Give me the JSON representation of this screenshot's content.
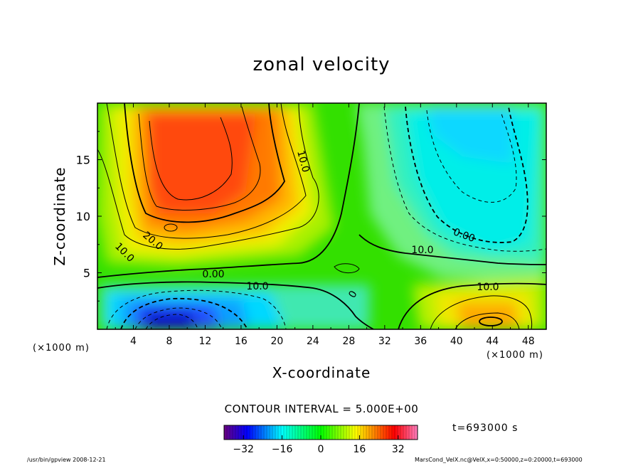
{
  "chart_data": {
    "type": "contour",
    "title": "zonal velocity",
    "xlabel": "X-coordinate",
    "ylabel": "Z-coordinate",
    "xunit": "(×1000 m)",
    "zunit": "(×1000 m)",
    "xlim": [
      0,
      50
    ],
    "ylim": [
      0,
      20
    ],
    "xticks": [
      "4",
      "8",
      "12",
      "16",
      "20",
      "24",
      "28",
      "32",
      "36",
      "40",
      "44",
      "48"
    ],
    "yticks": [
      "5",
      "10",
      "15"
    ],
    "contour_interval_text": "CONTOUR INTERVAL = 5.000E+00",
    "contour_labels": [
      "10.0",
      "20.0",
      "10.0",
      "0.00",
      "10.0",
      "0",
      "10.0",
      "0.00",
      "10.0"
    ],
    "colorbar": {
      "range": [
        -40,
        40
      ],
      "tick_labels": [
        "−32",
        "−16",
        "0",
        "16",
        "32"
      ],
      "colors": [
        "#6a0080",
        "#0000ff",
        "#00ffff",
        "#00ff00",
        "#ffff00",
        "#ff0000",
        "#ff80c0"
      ]
    },
    "grid": false,
    "legend": "bottom-center colorbar",
    "features": [
      {
        "kind": "max",
        "x": 12,
        "z": 14,
        "value": 32
      },
      {
        "kind": "min",
        "x": 42,
        "z": 15,
        "value": -12
      },
      {
        "kind": "min",
        "x": 8,
        "z": 1.5,
        "value": -35
      },
      {
        "kind": "max",
        "x": 44,
        "z": 1,
        "value": 18
      }
    ]
  },
  "annotations": {
    "time": "t=693000 s",
    "footer_left": "/usr/bin/gpview   2008-12-21",
    "footer_right": "MarsCond_VelX.nc@VelX,x=0:50000,z=0:20000,t=693000"
  }
}
